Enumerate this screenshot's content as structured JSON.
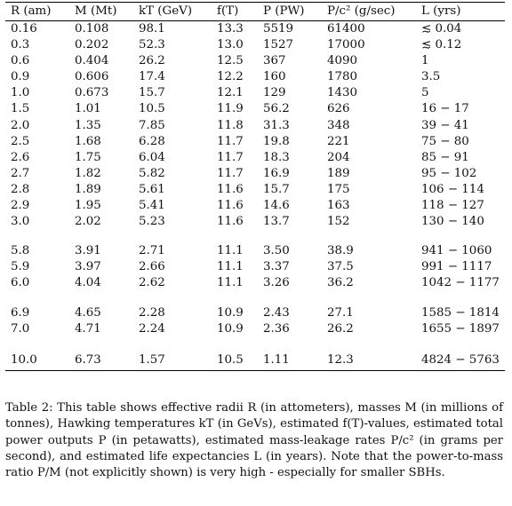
{
  "table": {
    "headers": [
      "R (am)",
      "M (Mt)",
      "kT (GeV)",
      "f(T)",
      "P (PW)",
      "P/c² (g/sec)",
      "L (yrs)"
    ],
    "groups": [
      [
        [
          "0.16",
          "0.108",
          "98.1",
          "13.3",
          "5519",
          "61400",
          "≲ 0.04"
        ],
        [
          "0.3",
          "0.202",
          "52.3",
          "13.0",
          "1527",
          "17000",
          "≲ 0.12"
        ],
        [
          "0.6",
          "0.404",
          "26.2",
          "12.5",
          "367",
          "4090",
          "1"
        ],
        [
          "0.9",
          "0.606",
          "17.4",
          "12.2",
          "160",
          "1780",
          "3.5"
        ],
        [
          "1.0",
          "0.673",
          "15.7",
          "12.1",
          "129",
          "1430",
          "5"
        ],
        [
          "1.5",
          "1.01",
          "10.5",
          "11.9",
          "56.2",
          "626",
          "16 − 17"
        ],
        [
          "2.0",
          "1.35",
          "7.85",
          "11.8",
          "31.3",
          "348",
          "39 − 41"
        ],
        [
          "2.5",
          "1.68",
          "6.28",
          "11.7",
          "19.8",
          "221",
          "75 − 80"
        ],
        [
          "2.6",
          "1.75",
          "6.04",
          "11.7",
          "18.3",
          "204",
          "85 − 91"
        ],
        [
          "2.7",
          "1.82",
          "5.82",
          "11.7",
          "16.9",
          "189",
          "95 − 102"
        ],
        [
          "2.8",
          "1.89",
          "5.61",
          "11.6",
          "15.7",
          "175",
          "106 − 114"
        ],
        [
          "2.9",
          "1.95",
          "5.41",
          "11.6",
          "14.6",
          "163",
          "118 − 127"
        ],
        [
          "3.0",
          "2.02",
          "5.23",
          "11.6",
          "13.7",
          "152",
          "130 − 140"
        ]
      ],
      [
        [
          "5.8",
          "3.91",
          "2.71",
          "11.1",
          "3.50",
          "38.9",
          "941 − 1060"
        ],
        [
          "5.9",
          "3.97",
          "2.66",
          "11.1",
          "3.37",
          "37.5",
          "991 − 1117"
        ],
        [
          "6.0",
          "4.04",
          "2.62",
          "11.1",
          "3.26",
          "36.2",
          "1042 − 1177"
        ]
      ],
      [
        [
          "6.9",
          "4.65",
          "2.28",
          "10.9",
          "2.43",
          "27.1",
          "1585 − 1814"
        ],
        [
          "7.0",
          "4.71",
          "2.24",
          "10.9",
          "2.36",
          "26.2",
          "1655 − 1897"
        ]
      ],
      [
        [
          "10.0",
          "6.73",
          "1.57",
          "10.5",
          "1.11",
          "12.3",
          "4824 − 5763"
        ]
      ]
    ]
  },
  "caption": "Table 2: This table shows effective radii R (in attometers), masses M (in millions of tonnes), Hawking temperatures kT (in GeVs), estimated f(T)-values, estimated total power outputs P (in petawatts), estimated mass-leakage rates P/c² (in grams per second), and estimated life expectancies L (in years). Note that the power-to-mass ratio P/M (not explicitly shown) is very high - especially for smaller SBHs."
}
